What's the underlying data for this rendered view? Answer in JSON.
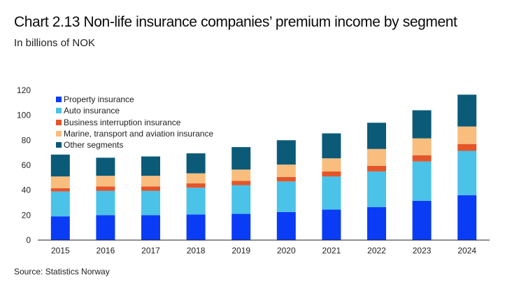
{
  "header": {
    "title": "Chart 2.13 Non-life insurance companies’ premium income by segment",
    "subtitle": "In billions of NOK"
  },
  "footer": {
    "source": "Source: Statistics Norway"
  },
  "chart_data": {
    "type": "bar",
    "stacked": true,
    "title": "Chart 2.13 Non-life insurance companies’ premium income by segment",
    "subtitle": "In billions of NOK",
    "xlabel": "",
    "ylabel": "",
    "ylim": [
      0,
      120
    ],
    "yticks": [
      0,
      20,
      40,
      60,
      80,
      100,
      120
    ],
    "grid": false,
    "legend_position": "top-left",
    "categories": [
      "2015",
      "2016",
      "2017",
      "2018",
      "2019",
      "2020",
      "2021",
      "2022",
      "2023",
      "2024"
    ],
    "series": [
      {
        "name": "Property insurance",
        "color": "#0a3cf5",
        "values": [
          19,
          20,
          20,
          20.5,
          21,
          22.5,
          24.5,
          26.5,
          31.5,
          36
        ]
      },
      {
        "name": "Auto insurance",
        "color": "#4bc2e8",
        "values": [
          20,
          19.5,
          19.5,
          21.5,
          23,
          24.5,
          26.5,
          28.5,
          31.5,
          35.5
        ]
      },
      {
        "name": "Business interruption insurance",
        "color": "#e4562a",
        "values": [
          2.5,
          3.5,
          3.5,
          3.5,
          3.5,
          3.5,
          4,
          4.5,
          5,
          5.5
        ]
      },
      {
        "name": "Marine, transport and aviation insurance",
        "color": "#f9bd7e",
        "values": [
          9.5,
          8.5,
          8.5,
          8,
          9,
          10,
          10.5,
          13.5,
          13.5,
          14
        ]
      },
      {
        "name": "Other segments",
        "color": "#0a5a78",
        "values": [
          17.5,
          14.5,
          15.5,
          16,
          18,
          19.5,
          20,
          21,
          22.5,
          25.5
        ]
      }
    ]
  }
}
